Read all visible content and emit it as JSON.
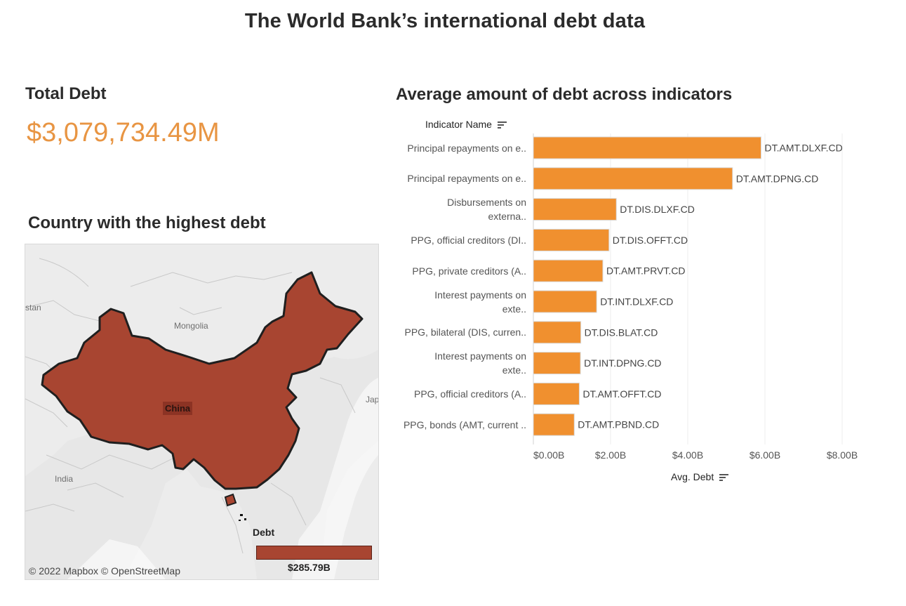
{
  "page": {
    "title": "The World Bank’s international debt data"
  },
  "kpi": {
    "title": "Total Debt",
    "value": "$3,079,734.49M",
    "accent_color": "#e89543"
  },
  "map": {
    "title": "Country with the highest debt",
    "country_label": "China",
    "place_labels": {
      "mongolia": "Mongolia",
      "india": "India",
      "stan": "stan",
      "japan": "Jap"
    },
    "legend_title": "Debt",
    "legend_value": "$285.79B",
    "attribution": "© 2022 Mapbox  © OpenStreetMap",
    "fill_color": "#a84531"
  },
  "chart": {
    "title": "Average amount of debt across indicators",
    "row_header": "Indicator Name",
    "value_header": "Avg. Debt",
    "sort_icon": "sort-descending-icon",
    "bar_color": "#f0902f"
  },
  "chart_data": {
    "type": "bar",
    "orientation": "horizontal",
    "title": "Average amount of debt across indicators",
    "xlabel": "Avg. Debt",
    "ylabel": "Indicator Name",
    "xlim": [
      0,
      8000000000
    ],
    "x_ticks": [
      0,
      2000000000,
      4000000000,
      6000000000,
      8000000000
    ],
    "x_tick_labels": [
      "$0.00B",
      "$2.00B",
      "$4.00B",
      "$6.00B",
      "$8.00B"
    ],
    "grid": true,
    "categories": [
      [
        "Principal repayments on e.."
      ],
      [
        "Principal repayments on e.."
      ],
      [
        "Disbursements on",
        "externa.."
      ],
      [
        "PPG, official creditors (DI.."
      ],
      [
        "PPG, private creditors (A.."
      ],
      [
        "Interest payments on",
        "exte.."
      ],
      [
        "PPG, bilateral (DIS, curren.."
      ],
      [
        "Interest payments on",
        "exte.."
      ],
      [
        "PPG, official creditors (A.."
      ],
      [
        "PPG, bonds (AMT, current .."
      ]
    ],
    "bar_labels": [
      "DT.AMT.DLXF.CD",
      "DT.AMT.DPNG.CD",
      "DT.DIS.DLXF.CD",
      "DT.DIS.OFFT.CD",
      "DT.AMT.PRVT.CD",
      "DT.INT.DLXF.CD",
      "DT.DIS.BLAT.CD",
      "DT.INT.DPNG.CD",
      "DT.AMT.OFFT.CD",
      "DT.AMT.PBND.CD"
    ],
    "values": [
      5900000000,
      5160000000,
      2150000000,
      1960000000,
      1800000000,
      1640000000,
      1230000000,
      1220000000,
      1190000000,
      1060000000
    ]
  }
}
